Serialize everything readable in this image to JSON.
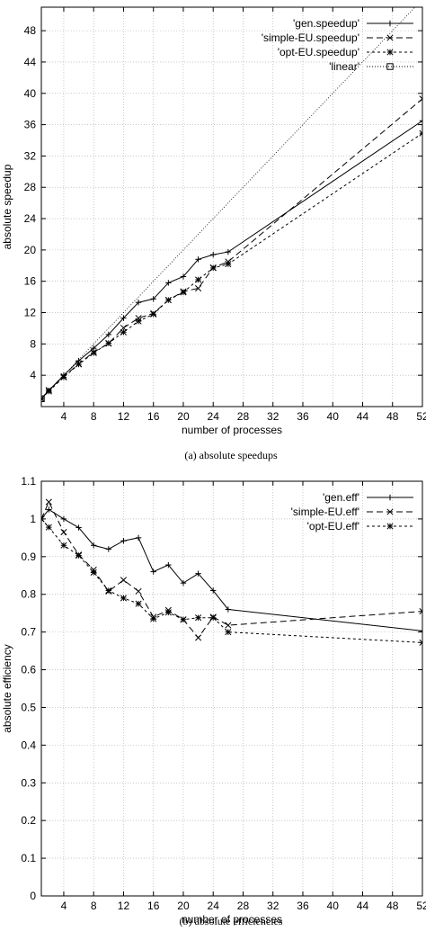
{
  "figure": {
    "caption_a": "(a) absolute speedups",
    "caption_b": "(b) absolute efficiencies"
  },
  "chart_data": [
    {
      "type": "line",
      "xlabel": "number of processes",
      "ylabel": "absolute speedup",
      "xlim": [
        1,
        52
      ],
      "ylim": [
        0,
        51
      ],
      "xticks": [
        4,
        8,
        12,
        16,
        20,
        24,
        28,
        32,
        36,
        40,
        44,
        48,
        52
      ],
      "yticks": [
        4,
        8,
        12,
        16,
        20,
        24,
        28,
        32,
        36,
        40,
        44,
        48
      ],
      "grid": true,
      "legend_position": "top-right",
      "series": [
        {
          "name": "'gen.speedup'",
          "marker": "plus",
          "dash": "solid",
          "x": [
            1,
            2,
            4,
            6,
            8,
            10,
            12,
            14,
            16,
            18,
            20,
            22,
            24,
            26,
            52
          ],
          "y": [
            1,
            2.05,
            4,
            5.85,
            7.45,
            9.2,
            11.3,
            13.3,
            13.75,
            15.8,
            16.6,
            18.8,
            19.4,
            19.75,
            36.5
          ]
        },
        {
          "name": "'simple-EU.speedup'",
          "marker": "cross",
          "dash": "dashed",
          "x": [
            1,
            2,
            4,
            6,
            8,
            10,
            12,
            14,
            16,
            18,
            20,
            22,
            24,
            26,
            52
          ],
          "y": [
            1,
            2.1,
            3.85,
            5.45,
            6.95,
            8.05,
            10.05,
            11.3,
            11.9,
            13.6,
            14.7,
            15.1,
            17.75,
            18.5,
            39.3
          ]
        },
        {
          "name": "'opt-EU.speedup'",
          "marker": "star",
          "dash": "dotted",
          "x": [
            1,
            2,
            4,
            6,
            8,
            10,
            12,
            14,
            16,
            18,
            20,
            22,
            24,
            26,
            52
          ],
          "y": [
            1,
            1.95,
            3.75,
            5.4,
            6.85,
            8.1,
            9.5,
            10.9,
            11.8,
            13.6,
            14.6,
            16.2,
            17.7,
            18.2,
            34.9
          ]
        },
        {
          "name": "'linear'",
          "marker": "square",
          "dash": "fine-dotted",
          "x": [
            1,
            52
          ],
          "y": [
            1,
            52
          ]
        }
      ]
    },
    {
      "type": "line",
      "xlabel": "number of processes",
      "ylabel": "absolute efficiency",
      "xlim": [
        1,
        52
      ],
      "ylim": [
        0,
        1.1
      ],
      "xticks": [
        4,
        8,
        12,
        16,
        20,
        24,
        28,
        32,
        36,
        40,
        44,
        48,
        52
      ],
      "yticks": [
        0,
        0.1,
        0.2,
        0.3,
        0.4,
        0.5,
        0.6,
        0.7,
        0.8,
        0.9,
        1,
        1.1
      ],
      "grid": true,
      "legend_position": "top-right",
      "series": [
        {
          "name": "'gen.eff'",
          "marker": "plus",
          "dash": "solid",
          "x": [
            1,
            2,
            4,
            6,
            8,
            10,
            12,
            14,
            16,
            18,
            20,
            22,
            24,
            26,
            52
          ],
          "y": [
            1.0,
            1.025,
            1.0,
            0.977,
            0.93,
            0.92,
            0.942,
            0.95,
            0.86,
            0.878,
            0.83,
            0.855,
            0.81,
            0.76,
            0.703
          ]
        },
        {
          "name": "'simple-EU.eff'",
          "marker": "cross",
          "dash": "dashed",
          "x": [
            1,
            2,
            4,
            6,
            8,
            10,
            12,
            14,
            16,
            18,
            20,
            22,
            24,
            26,
            52
          ],
          "y": [
            1.0,
            1.045,
            0.965,
            0.905,
            0.865,
            0.808,
            0.838,
            0.808,
            0.74,
            0.758,
            0.733,
            0.685,
            0.74,
            0.718,
            0.755
          ]
        },
        {
          "name": "'opt-EU.eff'",
          "marker": "star",
          "dash": "dotted",
          "x": [
            1,
            2,
            4,
            6,
            8,
            10,
            12,
            14,
            16,
            18,
            20,
            22,
            24,
            26,
            52
          ],
          "y": [
            1.0,
            0.978,
            0.93,
            0.903,
            0.858,
            0.81,
            0.79,
            0.775,
            0.735,
            0.752,
            0.733,
            0.738,
            0.738,
            0.7,
            0.672
          ]
        }
      ]
    }
  ]
}
